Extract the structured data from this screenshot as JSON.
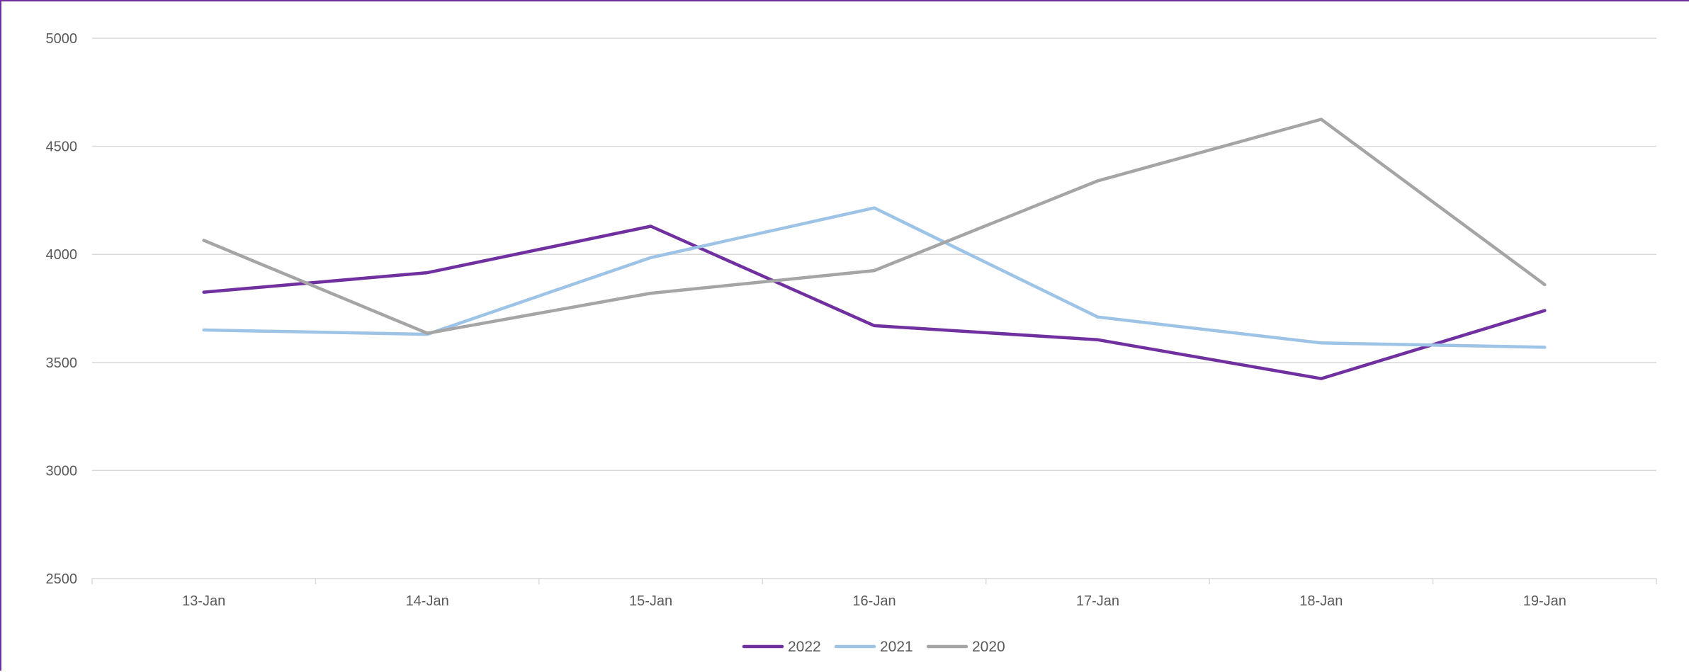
{
  "chart_data": {
    "type": "line",
    "categories": [
      "13-Jan",
      "14-Jan",
      "15-Jan",
      "16-Jan",
      "17-Jan",
      "18-Jan",
      "19-Jan"
    ],
    "series": [
      {
        "name": "2022",
        "color": "#7030a0",
        "values": [
          3825,
          3915,
          4130,
          3670,
          3605,
          3425,
          3740
        ]
      },
      {
        "name": "2021",
        "color": "#9dc3e6",
        "values": [
          3650,
          3630,
          3985,
          4215,
          3710,
          3590,
          3570
        ]
      },
      {
        "name": "2020",
        "color": "#a5a5a5",
        "values": [
          4065,
          3635,
          3820,
          3925,
          4340,
          4625,
          3860
        ]
      }
    ],
    "title": "",
    "xlabel": "",
    "ylabel": "",
    "ylim": [
      2500,
      5000
    ],
    "yticks": [
      2500,
      3000,
      3500,
      4000,
      4500,
      5000
    ],
    "grid": true,
    "legend_position": "bottom"
  }
}
